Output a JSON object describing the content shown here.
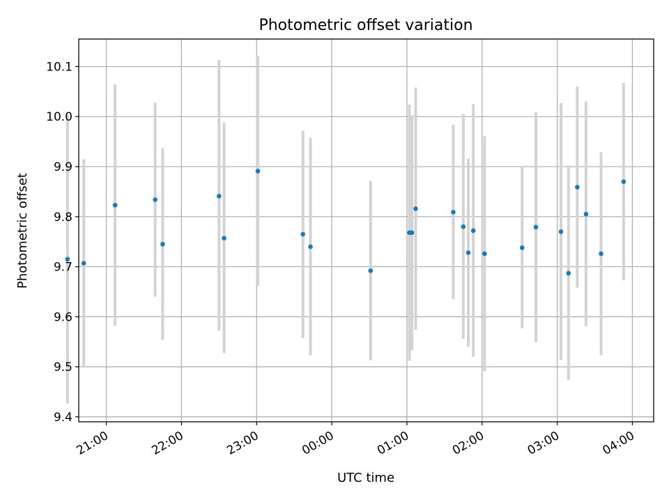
{
  "chart_data": {
    "type": "scatter",
    "title": "Photometric offset variation",
    "xlabel": "UTC time",
    "ylabel": "Photometric offset",
    "x_is_time": true,
    "xlim": [
      "20:38",
      "04:17"
    ],
    "ylim": [
      9.39,
      10.155
    ],
    "grid": true,
    "x_ticks": [
      "21:00",
      "22:00",
      "23:00",
      "00:00",
      "01:00",
      "02:00",
      "03:00",
      "04:00"
    ],
    "y_ticks": [
      "9.4",
      "9.5",
      "9.6",
      "9.7",
      "9.8",
      "9.9",
      "10.0",
      "10.1"
    ],
    "colors": {
      "point": "#1f77b4",
      "error_bar": "#d3d3d3"
    },
    "points": [
      {
        "x": "20:29",
        "y": 9.715,
        "yerr_low": 9.427,
        "yerr_high": 10.005
      },
      {
        "x": "20:42",
        "y": 9.707,
        "yerr_low": 9.5,
        "yerr_high": 9.915
      },
      {
        "x": "21:07",
        "y": 9.823,
        "yerr_low": 9.582,
        "yerr_high": 10.064
      },
      {
        "x": "21:39",
        "y": 9.834,
        "yerr_low": 9.64,
        "yerr_high": 10.028
      },
      {
        "x": "21:45",
        "y": 9.745,
        "yerr_low": 9.554,
        "yerr_high": 9.937
      },
      {
        "x": "22:30",
        "y": 9.841,
        "yerr_low": 9.572,
        "yerr_high": 10.113
      },
      {
        "x": "22:34",
        "y": 9.757,
        "yerr_low": 9.527,
        "yerr_high": 9.988
      },
      {
        "x": "23:01",
        "y": 9.891,
        "yerr_low": 9.661,
        "yerr_high": 10.121
      },
      {
        "x": "23:37",
        "y": 9.765,
        "yerr_low": 9.557,
        "yerr_high": 9.972
      },
      {
        "x": "23:43",
        "y": 9.74,
        "yerr_low": 9.523,
        "yerr_high": 9.958
      },
      {
        "x": "00:31",
        "y": 9.692,
        "yerr_low": 9.513,
        "yerr_high": 9.872
      },
      {
        "x": "01:02",
        "y": 9.768,
        "yerr_low": 9.512,
        "yerr_high": 10.024
      },
      {
        "x": "01:04",
        "y": 9.768,
        "yerr_low": 9.533,
        "yerr_high": 10.003
      },
      {
        "x": "01:07",
        "y": 9.816,
        "yerr_low": 9.574,
        "yerr_high": 10.058
      },
      {
        "x": "01:37",
        "y": 9.809,
        "yerr_low": 9.635,
        "yerr_high": 9.984
      },
      {
        "x": "01:45",
        "y": 9.78,
        "yerr_low": 9.556,
        "yerr_high": 10.005
      },
      {
        "x": "01:49",
        "y": 9.728,
        "yerr_low": 9.54,
        "yerr_high": 9.916
      },
      {
        "x": "01:53",
        "y": 9.772,
        "yerr_low": 9.52,
        "yerr_high": 10.025
      },
      {
        "x": "02:02",
        "y": 9.726,
        "yerr_low": 9.491,
        "yerr_high": 9.961
      },
      {
        "x": "02:32",
        "y": 9.738,
        "yerr_low": 9.577,
        "yerr_high": 9.9
      },
      {
        "x": "02:43",
        "y": 9.779,
        "yerr_low": 9.549,
        "yerr_high": 10.009
      },
      {
        "x": "03:03",
        "y": 9.77,
        "yerr_low": 9.514,
        "yerr_high": 10.027
      },
      {
        "x": "03:09",
        "y": 9.687,
        "yerr_low": 9.474,
        "yerr_high": 9.902
      },
      {
        "x": "03:16",
        "y": 9.859,
        "yerr_low": 9.658,
        "yerr_high": 10.06
      },
      {
        "x": "03:23",
        "y": 9.805,
        "yerr_low": 9.581,
        "yerr_high": 10.03
      },
      {
        "x": "03:35",
        "y": 9.726,
        "yerr_low": 9.523,
        "yerr_high": 9.929
      },
      {
        "x": "03:53",
        "y": 9.87,
        "yerr_low": 9.673,
        "yerr_high": 10.067
      }
    ]
  }
}
